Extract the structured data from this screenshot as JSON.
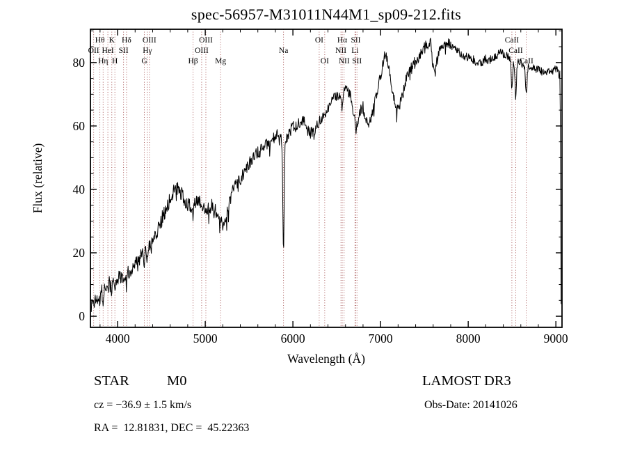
{
  "title": "spec-56957-M31011N44M1_sp09-212.fits",
  "annotations": {
    "object_class": "STAR",
    "subclass": "M0",
    "survey": "LAMOST DR3",
    "cz": "cz = −36.9 ± 1.5 km/s",
    "obs_date": "Obs-Date: 20141026",
    "ra_dec": "RA =  12.81831, DEC =  45.22363"
  },
  "chart_data": {
    "type": "line",
    "title": "spec-56957-M31011N44M1_sp09-212.fits",
    "xlabel": "Wavelength (Å)",
    "ylabel": "Flux (relative)",
    "xlim": [
      3690,
      9070
    ],
    "ylim": [
      -3.5,
      90.5
    ],
    "grid": false,
    "x_ticks": {
      "major": [
        4000,
        5000,
        6000,
        7000,
        8000,
        9000
      ],
      "minor_step": 200
    },
    "y_ticks": {
      "major": [
        0,
        20,
        40,
        60,
        80
      ],
      "minor_step": 5
    },
    "marker_color": "#a04848",
    "axis_color": "#000000",
    "spectral_lines": [
      {
        "wavelength": 3727,
        "label": "OII",
        "row": 2
      },
      {
        "wavelength": 3798,
        "label": "Hθ",
        "row": 1
      },
      {
        "wavelength": 3835,
        "label": "Hη",
        "row": 3
      },
      {
        "wavelength": 3889,
        "label": "HeI",
        "row": 2
      },
      {
        "wavelength": 3934,
        "label": "K",
        "row": 1
      },
      {
        "wavelength": 3969,
        "label": "H",
        "row": 3
      },
      {
        "wavelength": 4068,
        "label": "SII",
        "row": 2
      },
      {
        "wavelength": 4102,
        "label": "Hδ",
        "row": 1
      },
      {
        "wavelength": 4305,
        "label": "G",
        "row": 3
      },
      {
        "wavelength": 4340,
        "label": "Hγ",
        "row": 2
      },
      {
        "wavelength": 4363,
        "label": "OIII",
        "row": 1
      },
      {
        "wavelength": 4861,
        "label": "Hβ",
        "row": 3
      },
      {
        "wavelength": 4959,
        "label": "OIII",
        "row": 2
      },
      {
        "wavelength": 5007,
        "label": "OIII",
        "row": 1
      },
      {
        "wavelength": 5175,
        "label": "Mg",
        "row": 3
      },
      {
        "wavelength": 5893,
        "label": "Na",
        "row": 2
      },
      {
        "wavelength": 6300,
        "label": "OI",
        "row": 1
      },
      {
        "wavelength": 6363,
        "label": "OI",
        "row": 3
      },
      {
        "wavelength": 6548,
        "label": "NII",
        "row": 2
      },
      {
        "wavelength": 6563,
        "label": "Hα",
        "row": 1
      },
      {
        "wavelength": 6584,
        "label": "NII",
        "row": 3
      },
      {
        "wavelength": 6708,
        "label": "Li",
        "row": 2
      },
      {
        "wavelength": 6717,
        "label": "SII",
        "row": 1
      },
      {
        "wavelength": 6731,
        "label": "SII",
        "row": 3
      },
      {
        "wavelength": 8498,
        "label": "CaII",
        "row": 1
      },
      {
        "wavelength": 8542,
        "label": "CaII",
        "row": 2
      },
      {
        "wavelength": 8662,
        "label": "CaII",
        "row": 3
      }
    ],
    "series": [
      {
        "name": "spectrum",
        "color": "#000000",
        "noise": {
          "seed": 1337,
          "amp_blue": 2.6,
          "amp_red": 1.2,
          "step": 5,
          "spike_prob": 0.06,
          "spike_scale": 2.2
        },
        "anchors": [
          [
            3700,
            3
          ],
          [
            3715,
            5
          ],
          [
            3730,
            3.5
          ],
          [
            3745,
            6
          ],
          [
            3762,
            5
          ],
          [
            3780,
            7
          ],
          [
            3800,
            8
          ],
          [
            3825,
            7.5
          ],
          [
            3850,
            9
          ],
          [
            3875,
            9.5
          ],
          [
            3900,
            10
          ],
          [
            3925,
            11
          ],
          [
            3950,
            12
          ],
          [
            3975,
            11.5
          ],
          [
            4000,
            12
          ],
          [
            4030,
            12.5
          ],
          [
            4060,
            13
          ],
          [
            4090,
            13
          ],
          [
            4120,
            14
          ],
          [
            4150,
            15
          ],
          [
            4180,
            16
          ],
          [
            4210,
            17
          ],
          [
            4240,
            18
          ],
          [
            4270,
            19
          ],
          [
            4300,
            20
          ],
          [
            4330,
            21.5
          ],
          [
            4360,
            23
          ],
          [
            4390,
            24
          ],
          [
            4420,
            25.5
          ],
          [
            4450,
            27
          ],
          [
            4480,
            29
          ],
          [
            4510,
            31
          ],
          [
            4540,
            33
          ],
          [
            4570,
            35
          ],
          [
            4600,
            37
          ],
          [
            4630,
            39
          ],
          [
            4660,
            40.5
          ],
          [
            4690,
            40
          ],
          [
            4720,
            39
          ],
          [
            4750,
            37.5
          ],
          [
            4780,
            36
          ],
          [
            4810,
            35
          ],
          [
            4840,
            34.5
          ],
          [
            4870,
            35
          ],
          [
            4900,
            37
          ],
          [
            4930,
            36.5
          ],
          [
            4960,
            35
          ],
          [
            4990,
            34
          ],
          [
            5020,
            34
          ],
          [
            5050,
            34.5
          ],
          [
            5080,
            35
          ],
          [
            5110,
            34
          ],
          [
            5140,
            32
          ],
          [
            5170,
            29.5
          ],
          [
            5200,
            29
          ],
          [
            5230,
            31
          ],
          [
            5260,
            34
          ],
          [
            5290,
            37
          ],
          [
            5320,
            40
          ],
          [
            5350,
            42
          ],
          [
            5380,
            43
          ],
          [
            5420,
            44
          ],
          [
            5460,
            46
          ],
          [
            5500,
            48
          ],
          [
            5540,
            49
          ],
          [
            5580,
            51
          ],
          [
            5620,
            52
          ],
          [
            5660,
            53
          ],
          [
            5700,
            54
          ],
          [
            5740,
            55
          ],
          [
            5780,
            56
          ],
          [
            5820,
            57
          ],
          [
            5860,
            57
          ],
          [
            5900,
            56
          ],
          [
            5940,
            57
          ],
          [
            5980,
            59
          ],
          [
            6020,
            60
          ],
          [
            6060,
            61
          ],
          [
            6100,
            62
          ],
          [
            6140,
            61
          ],
          [
            6180,
            58
          ],
          [
            6220,
            58
          ],
          [
            6260,
            59
          ],
          [
            6300,
            61
          ],
          [
            6340,
            63
          ],
          [
            6380,
            65
          ],
          [
            6420,
            67
          ],
          [
            6460,
            68
          ],
          [
            6500,
            70
          ],
          [
            6540,
            70
          ],
          [
            6580,
            71
          ],
          [
            6620,
            72
          ],
          [
            6660,
            69
          ],
          [
            6700,
            63
          ],
          [
            6740,
            61
          ],
          [
            6770,
            65
          ],
          [
            6800,
            66
          ],
          [
            6830,
            63
          ],
          [
            6860,
            60
          ],
          [
            6890,
            62
          ],
          [
            6920,
            66
          ],
          [
            6950,
            70
          ],
          [
            6980,
            73
          ],
          [
            7010,
            77
          ],
          [
            7040,
            82
          ],
          [
            7065,
            84
          ],
          [
            7090,
            79
          ],
          [
            7120,
            73
          ],
          [
            7150,
            69
          ],
          [
            7180,
            66
          ],
          [
            7210,
            66
          ],
          [
            7240,
            69
          ],
          [
            7270,
            72
          ],
          [
            7300,
            76
          ],
          [
            7340,
            78
          ],
          [
            7380,
            80
          ],
          [
            7420,
            81
          ],
          [
            7460,
            83
          ],
          [
            7500,
            85
          ],
          [
            7540,
            86
          ],
          [
            7570,
            87
          ],
          [
            7600,
            84
          ],
          [
            7630,
            80
          ],
          [
            7660,
            83
          ],
          [
            7700,
            85
          ],
          [
            7740,
            86
          ],
          [
            7780,
            86
          ],
          [
            7820,
            85
          ],
          [
            7860,
            84
          ],
          [
            7900,
            83
          ],
          [
            7950,
            82
          ],
          [
            8000,
            82
          ],
          [
            8050,
            81
          ],
          [
            8100,
            80
          ],
          [
            8150,
            80
          ],
          [
            8200,
            81
          ],
          [
            8250,
            81
          ],
          [
            8300,
            82
          ],
          [
            8350,
            83
          ],
          [
            8400,
            83
          ],
          [
            8450,
            82
          ],
          [
            8500,
            81
          ],
          [
            8550,
            80
          ],
          [
            8600,
            80
          ],
          [
            8650,
            79
          ],
          [
            8700,
            79
          ],
          [
            8750,
            78
          ],
          [
            8800,
            78
          ],
          [
            8850,
            77
          ],
          [
            8900,
            77
          ],
          [
            8950,
            77
          ],
          [
            9000,
            78
          ],
          [
            9030,
            77
          ],
          [
            9048,
            76
          ],
          [
            9055,
            35
          ],
          [
            9060,
            3
          ]
        ],
        "dips": [
          [
            3798,
            3,
            5
          ],
          [
            3835,
            3,
            5
          ],
          [
            3889,
            3,
            5
          ],
          [
            3934,
            4,
            6
          ],
          [
            3969,
            4,
            6
          ],
          [
            4102,
            4,
            6
          ],
          [
            4227,
            2.5,
            5
          ],
          [
            4305,
            3,
            7
          ],
          [
            4340,
            3.5,
            6
          ],
          [
            4383,
            2.5,
            5
          ],
          [
            4861,
            4,
            7
          ],
          [
            5167,
            2,
            5
          ],
          [
            5893,
            34,
            8
          ],
          [
            6563,
            6,
            7
          ],
          [
            6717,
            3,
            6
          ],
          [
            7605,
            6,
            16
          ],
          [
            8498,
            9,
            7
          ],
          [
            8542,
            11,
            8
          ],
          [
            8662,
            9,
            9
          ]
        ]
      }
    ]
  }
}
